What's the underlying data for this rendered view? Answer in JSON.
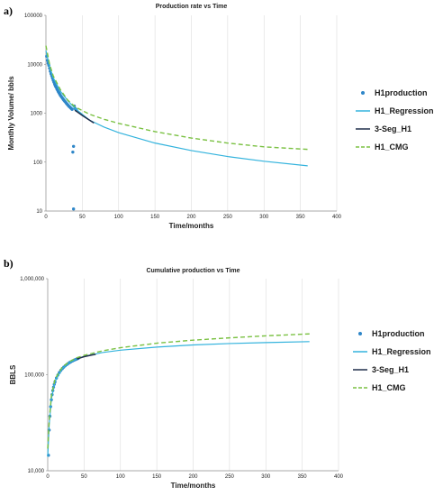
{
  "figure_labels": [
    "a)",
    "b)"
  ],
  "chart_data": [
    {
      "type": "line",
      "title": "Production rate vs Time",
      "xlabel": "Time/months",
      "ylabel": "Monthly Volume/ bbls",
      "xlim": [
        0,
        400
      ],
      "ylim": [
        10,
        100000
      ],
      "yscale": "log",
      "grid": "vertical",
      "legend_position": "right",
      "x_ticks": [
        0,
        50,
        100,
        150,
        200,
        250,
        300,
        350,
        400
      ],
      "x_tick_labels": [
        "0",
        "50",
        "100",
        "150",
        "200",
        "250",
        "300",
        "350",
        "400"
      ],
      "y_ticks": [
        10,
        100,
        1000,
        10000,
        100000
      ],
      "y_tick_labels": [
        "10",
        "100",
        "1000",
        "10000",
        "100000"
      ],
      "legend": [
        "H1production",
        "H1_Regression",
        "3-Seg_H1",
        "H1_CMG"
      ],
      "series": [
        {
          "name": "H1production",
          "style": "markers",
          "color": "#2e86c8",
          "points": [
            [
              1,
              14500
            ],
            [
              2,
              12000
            ],
            [
              3,
              10500
            ],
            [
              4,
              9500
            ],
            [
              5,
              8300
            ],
            [
              6,
              7200
            ],
            [
              7,
              6400
            ],
            [
              8,
              5800
            ],
            [
              9,
              5200
            ],
            [
              10,
              4700
            ],
            [
              11,
              4300
            ],
            [
              12,
              3900
            ],
            [
              13,
              3600
            ],
            [
              14,
              3400
            ],
            [
              15,
              3150
            ],
            [
              16,
              2950
            ],
            [
              17,
              2750
            ],
            [
              18,
              2600
            ],
            [
              19,
              2450
            ],
            [
              20,
              2300
            ],
            [
              21,
              2200
            ],
            [
              22,
              2100
            ],
            [
              23,
              2000
            ],
            [
              24,
              1900
            ],
            [
              25,
              1820
            ],
            [
              26,
              1750
            ],
            [
              27,
              1680
            ],
            [
              28,
              1600
            ],
            [
              29,
              1540
            ],
            [
              30,
              1480
            ],
            [
              31,
              1420
            ],
            [
              32,
              1370
            ],
            [
              33,
              1330
            ],
            [
              34,
              1280
            ],
            [
              35,
              1240
            ],
            [
              36,
              1200
            ],
            [
              37,
              160
            ],
            [
              38,
              210
            ],
            [
              38,
              11
            ],
            [
              39,
              1400
            ],
            [
              40,
              1250
            ],
            [
              41,
              1200
            ],
            [
              42,
              1150
            ]
          ]
        },
        {
          "name": "H1_Regression",
          "style": "solid",
          "color": "#33b3dd",
          "points": [
            [
              0,
              19000
            ],
            [
              5,
              9000
            ],
            [
              10,
              5300
            ],
            [
              20,
              2800
            ],
            [
              30,
              1800
            ],
            [
              40,
              1250
            ],
            [
              60,
              720
            ],
            [
              80,
              520
            ],
            [
              100,
              400
            ],
            [
              150,
              245
            ],
            [
              200,
              172
            ],
            [
              250,
              130
            ],
            [
              300,
              104
            ],
            [
              360,
              84
            ]
          ]
        },
        {
          "name": "3-Seg_H1",
          "style": "solid",
          "color": "#1f2d4a",
          "points": [
            [
              40,
              1150
            ],
            [
              50,
              900
            ],
            [
              60,
              720
            ],
            [
              66,
              630
            ]
          ]
        },
        {
          "name": "H1_CMG",
          "style": "dashed",
          "color": "#7ac142",
          "points": [
            [
              0,
              24000
            ],
            [
              5,
              10000
            ],
            [
              10,
              5800
            ],
            [
              20,
              3000
            ],
            [
              30,
              1850
            ],
            [
              40,
              1350
            ],
            [
              60,
              950
            ],
            [
              80,
              750
            ],
            [
              100,
              620
            ],
            [
              150,
              420
            ],
            [
              200,
              310
            ],
            [
              250,
              245
            ],
            [
              300,
              205
            ],
            [
              360,
              182
            ]
          ]
        }
      ]
    },
    {
      "type": "line",
      "title": "Cumulative production vs Time",
      "xlabel": "Time/months",
      "ylabel": "BBLS",
      "xlim": [
        0,
        400
      ],
      "ylim": [
        10000,
        1000000
      ],
      "yscale": "log",
      "grid": "vertical",
      "legend_position": "right",
      "x_ticks": [
        0,
        50,
        100,
        150,
        200,
        250,
        300,
        350,
        400
      ],
      "x_tick_labels": [
        "0",
        "50",
        "100",
        "150",
        "200",
        "250",
        "300",
        "350",
        "400"
      ],
      "y_ticks": [
        10000,
        100000,
        1000000
      ],
      "y_tick_labels": [
        "10,000",
        "100,000",
        "1,000,000"
      ],
      "legend": [
        "H1production",
        "H1_Regression",
        "3-Seg_H1",
        "H1_CMG"
      ],
      "series": [
        {
          "name": "H1production",
          "style": "markers",
          "color": "#2e86c8",
          "points": [
            [
              1,
              14500
            ],
            [
              2,
              26500
            ],
            [
              3,
              37000
            ],
            [
              4,
              46500
            ],
            [
              5,
              54800
            ],
            [
              6,
              62000
            ],
            [
              7,
              68400
            ],
            [
              8,
              74200
            ],
            [
              9,
              79400
            ],
            [
              10,
              84100
            ],
            [
              12,
              92300
            ],
            [
              14,
              99300
            ],
            [
              16,
              105400
            ],
            [
              18,
              110800
            ],
            [
              20,
              115500
            ],
            [
              22,
              119800
            ],
            [
              24,
              123700
            ],
            [
              26,
              127300
            ],
            [
              28,
              130600
            ],
            [
              30,
              133600
            ],
            [
              32,
              136400
            ],
            [
              34,
              139000
            ],
            [
              36,
              141400
            ],
            [
              38,
              143500
            ],
            [
              40,
              145700
            ],
            [
              42,
              148000
            ]
          ]
        },
        {
          "name": "H1_Regression",
          "style": "solid",
          "color": "#33b3dd",
          "points": [
            [
              0,
              14000
            ],
            [
              2,
              30000
            ],
            [
              5,
              56000
            ],
            [
              10,
              85000
            ],
            [
              20,
              116000
            ],
            [
              30,
              134000
            ],
            [
              40,
              146000
            ],
            [
              50,
              155000
            ],
            [
              75,
              170000
            ],
            [
              100,
              180000
            ],
            [
              150,
              194000
            ],
            [
              200,
              204000
            ],
            [
              250,
              211000
            ],
            [
              300,
              216000
            ],
            [
              360,
              221000
            ]
          ]
        },
        {
          "name": "3-Seg_H1",
          "style": "solid",
          "color": "#1f2d4a",
          "points": [
            [
              40,
              146000
            ],
            [
              50,
              154000
            ],
            [
              60,
              160000
            ],
            [
              66,
              163000
            ]
          ]
        },
        {
          "name": "H1_CMG",
          "style": "dashed",
          "color": "#7ac142",
          "points": [
            [
              0,
              17000
            ],
            [
              2,
              33000
            ],
            [
              5,
              60000
            ],
            [
              10,
              90000
            ],
            [
              20,
              120000
            ],
            [
              30,
              137000
            ],
            [
              40,
              150000
            ],
            [
              50,
              159000
            ],
            [
              75,
              177000
            ],
            [
              100,
              191000
            ],
            [
              150,
              213000
            ],
            [
              200,
              229000
            ],
            [
              250,
              242000
            ],
            [
              300,
              254000
            ],
            [
              360,
              266000
            ]
          ]
        }
      ]
    }
  ]
}
